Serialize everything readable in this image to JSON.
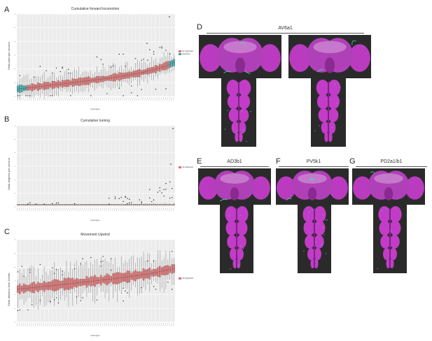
{
  "panels": {
    "A": {
      "letter": "A",
      "title": "Cumulative forward locomotion",
      "ylabel": "Delta pixel per second",
      "xlabel": "Genotype",
      "legend": [
        "Not Significant",
        "Significant"
      ]
    },
    "B": {
      "letter": "B",
      "title": "Cumulative turning",
      "ylabel": "Delta degrees per second",
      "xlabel": "Genotype",
      "legend": [
        "Not Significant"
      ]
    },
    "C": {
      "letter": "C",
      "title": "Movement Upwind",
      "ylabel": "Delta distance from Center",
      "xlabel": "Genotype",
      "legend": [
        "Not Significant"
      ]
    },
    "D": {
      "letter": "D",
      "title": "AV6a1"
    },
    "E": {
      "letter": "E",
      "title": "AD3b1"
    },
    "F": {
      "letter": "F",
      "title": "PV5k1"
    },
    "G": {
      "letter": "G",
      "title": "PD2a1/b1"
    }
  },
  "colors": {
    "not_significant": "#e07070",
    "significant": "#3aa7a7",
    "brain": "#c23cc8",
    "brain_bg": "#2a2a2a",
    "neuron": "#3de0b0"
  },
  "chart_data": [
    {
      "type": "box",
      "panel": "A",
      "title": "Cumulative forward locomotion",
      "xlabel": "Genotype",
      "ylabel": "Delta pixel per second",
      "n_genotypes": 78,
      "trend": "increasing",
      "series": [
        {
          "name": "Not Significant"
        },
        {
          "name": "Significant"
        }
      ]
    },
    {
      "type": "box",
      "panel": "B",
      "title": "Cumulative turning",
      "xlabel": "Genotype",
      "ylabel": "Delta degrees per second",
      "n_genotypes": 78,
      "series": [
        {
          "name": "Not Significant"
        }
      ]
    },
    {
      "type": "box",
      "panel": "C",
      "title": "Movement Upwind",
      "xlabel": "Genotype",
      "ylabel": "Delta distance from Center",
      "n_genotypes": 78,
      "trend": "increasing",
      "series": [
        {
          "name": "Not Significant"
        }
      ]
    }
  ]
}
